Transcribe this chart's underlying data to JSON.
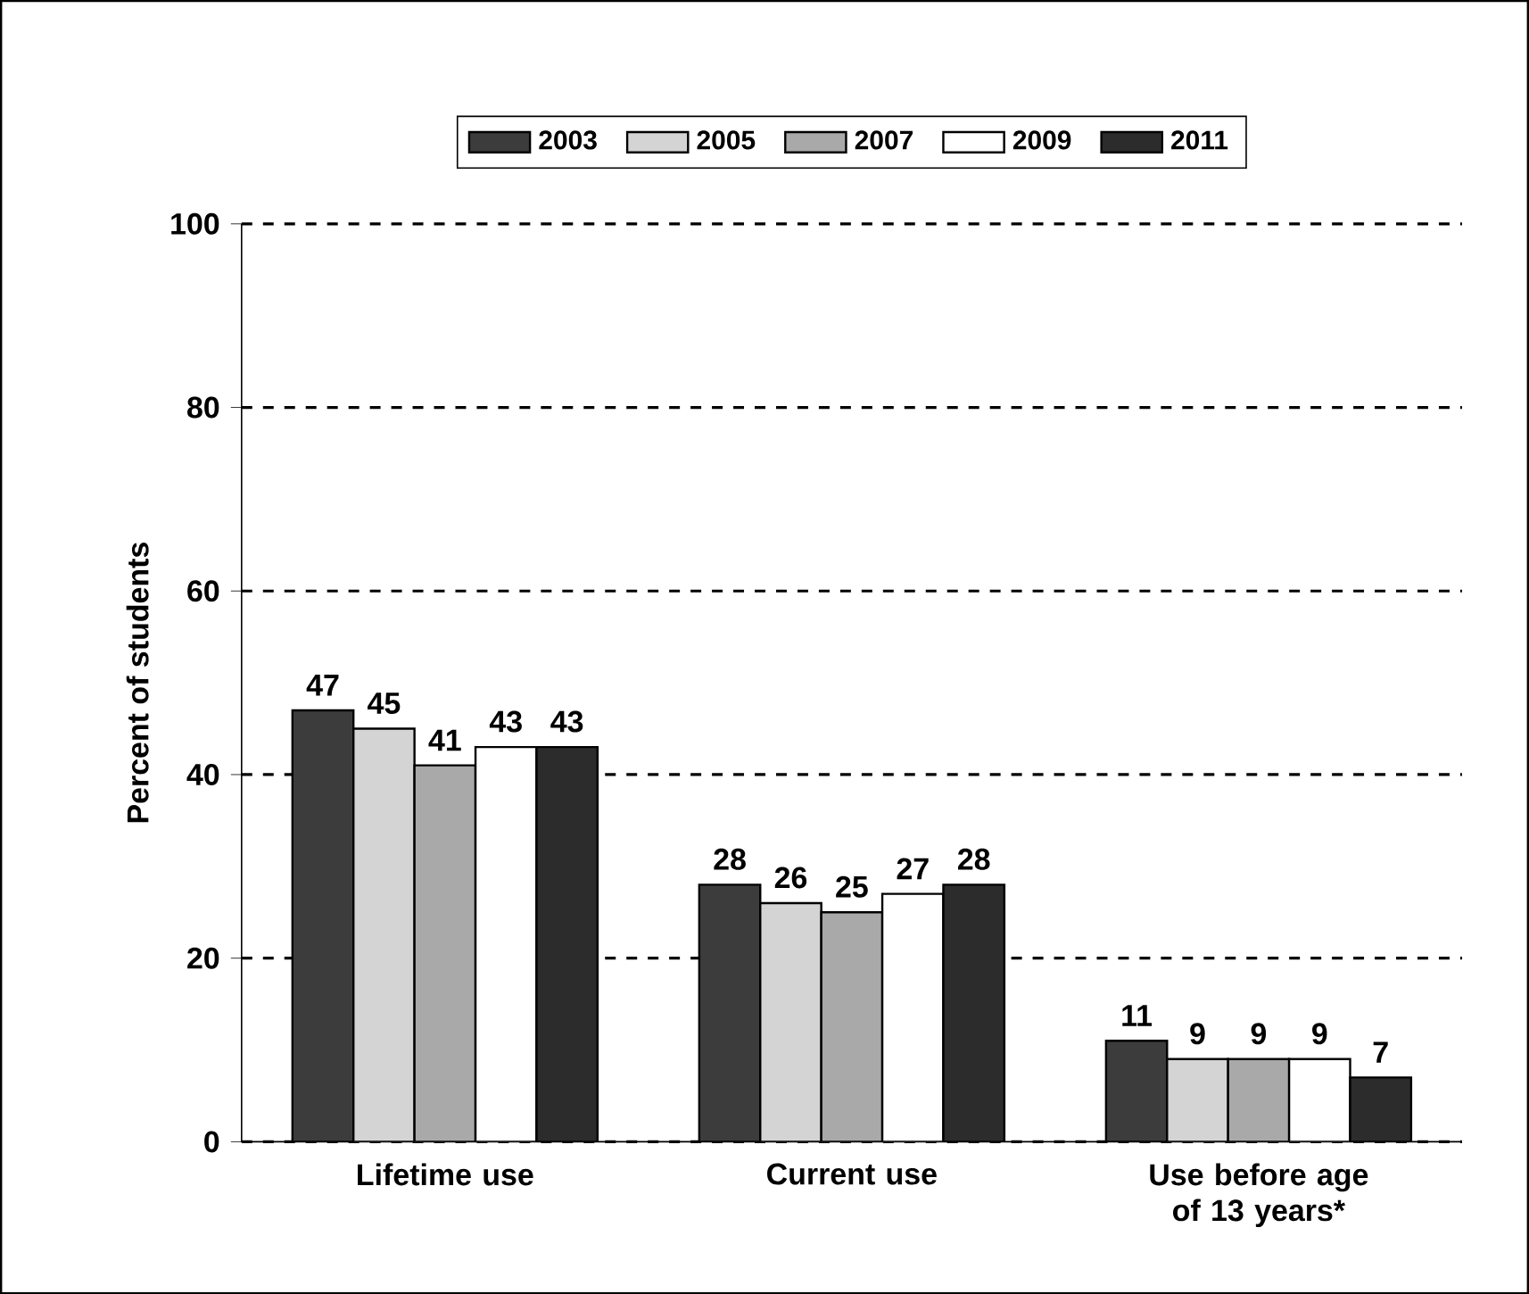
{
  "chart_data": {
    "type": "bar",
    "ylabel": "Percent of students",
    "categories": [
      "Lifetime use",
      "Current use",
      "Use before age of 13 years*"
    ],
    "series": [
      {
        "name": "2003",
        "color": "#3c3c3c",
        "values": [
          47,
          28,
          11
        ]
      },
      {
        "name": "2005",
        "color": "#d4d4d4",
        "values": [
          45,
          26,
          9
        ]
      },
      {
        "name": "2007",
        "color": "#a9a9a9",
        "values": [
          41,
          25,
          9
        ]
      },
      {
        "name": "2009",
        "color": "#ffffff",
        "values": [
          43,
          27,
          9
        ]
      },
      {
        "name": "2011",
        "color": "#2c2c2c",
        "values": [
          43,
          28,
          7
        ]
      }
    ],
    "ylim": [
      0,
      100
    ],
    "yticks": [
      0,
      20,
      40,
      60,
      80,
      100
    ],
    "grid": "y",
    "legend": "top",
    "data_labels": true
  }
}
